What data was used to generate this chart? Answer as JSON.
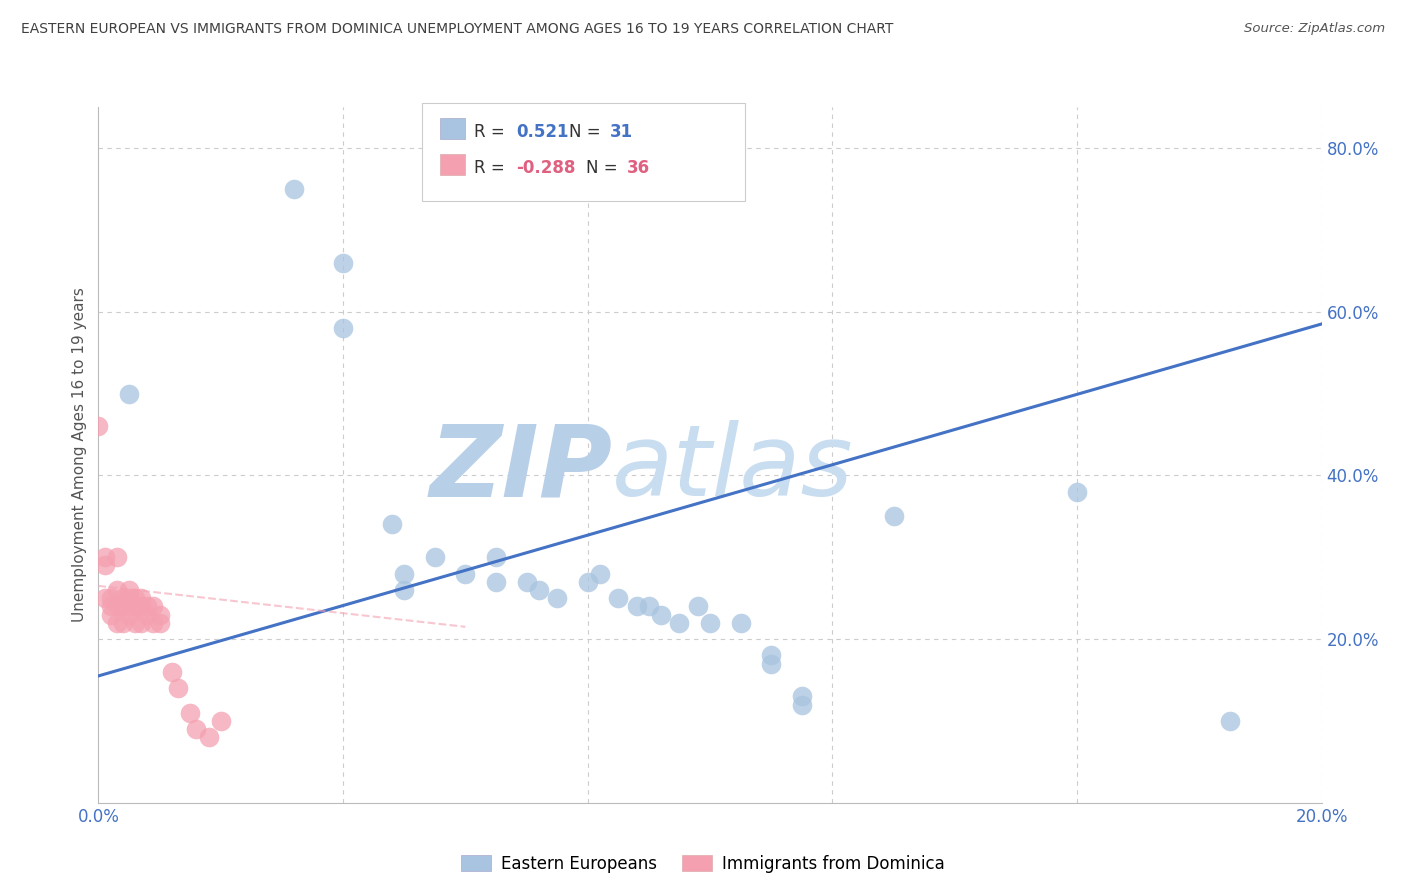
{
  "title": "EASTERN EUROPEAN VS IMMIGRANTS FROM DOMINICA UNEMPLOYMENT AMONG AGES 16 TO 19 YEARS CORRELATION CHART",
  "source": "Source: ZipAtlas.com",
  "ylabel": "Unemployment Among Ages 16 to 19 years",
  "xlim": [
    0.0,
    0.2
  ],
  "ylim": [
    0.0,
    0.85
  ],
  "watermark_zip": "ZIP",
  "watermark_atlas": "atlas",
  "blue_scatter_x": [
    0.032,
    0.04,
    0.04,
    0.048,
    0.05,
    0.05,
    0.055,
    0.06,
    0.065,
    0.065,
    0.07,
    0.072,
    0.075,
    0.08,
    0.082,
    0.085,
    0.088,
    0.09,
    0.092,
    0.095,
    0.098,
    0.1,
    0.105,
    0.11,
    0.11,
    0.115,
    0.115,
    0.13,
    0.005,
    0.16,
    0.185
  ],
  "blue_scatter_y": [
    0.75,
    0.66,
    0.58,
    0.34,
    0.28,
    0.26,
    0.3,
    0.28,
    0.3,
    0.27,
    0.27,
    0.26,
    0.25,
    0.27,
    0.28,
    0.25,
    0.24,
    0.24,
    0.23,
    0.22,
    0.24,
    0.22,
    0.22,
    0.18,
    0.17,
    0.13,
    0.12,
    0.35,
    0.5,
    0.38,
    0.1
  ],
  "pink_scatter_x": [
    0.0,
    0.001,
    0.001,
    0.001,
    0.002,
    0.002,
    0.002,
    0.003,
    0.003,
    0.003,
    0.003,
    0.004,
    0.004,
    0.004,
    0.005,
    0.005,
    0.005,
    0.005,
    0.006,
    0.006,
    0.006,
    0.007,
    0.007,
    0.007,
    0.008,
    0.008,
    0.009,
    0.009,
    0.01,
    0.01,
    0.012,
    0.013,
    0.015,
    0.016,
    0.018,
    0.02
  ],
  "pink_scatter_y": [
    0.46,
    0.3,
    0.29,
    0.25,
    0.25,
    0.24,
    0.23,
    0.3,
    0.26,
    0.24,
    0.22,
    0.25,
    0.24,
    0.22,
    0.26,
    0.25,
    0.24,
    0.23,
    0.25,
    0.24,
    0.22,
    0.25,
    0.24,
    0.22,
    0.24,
    0.23,
    0.24,
    0.22,
    0.23,
    0.22,
    0.16,
    0.14,
    0.11,
    0.09,
    0.08,
    0.1
  ],
  "blue_line_x": [
    0.0,
    0.2
  ],
  "blue_line_y": [
    0.155,
    0.585
  ],
  "pink_line_x": [
    0.0,
    0.06
  ],
  "pink_line_y": [
    0.265,
    0.215
  ],
  "blue_dot_color": "#a8c4e0",
  "pink_dot_color": "#f4a0b0",
  "blue_line_color": "#4472c4",
  "pink_line_color": "#f4a0b0",
  "title_color": "#404040",
  "axis_color": "#4472c4",
  "grid_color": "#cccccc",
  "watermark_color_zip": "#b8cfe8",
  "watermark_color_atlas": "#c8ddf0",
  "background_color": "#ffffff",
  "legend_r1_label": "R = ",
  "legend_r1_value": "0.521",
  "legend_r1_n_label": "N = ",
  "legend_r1_n_value": "31",
  "legend_r2_label": "R = ",
  "legend_r2_value": "-0.288",
  "legend_r2_n_label": "N = ",
  "legend_r2_n_value": "36",
  "bottom_legend_blue": "Eastern Europeans",
  "bottom_legend_pink": "Immigrants from Dominica"
}
